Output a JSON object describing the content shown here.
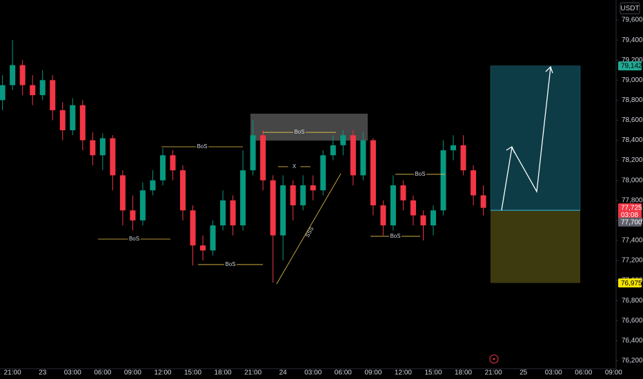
{
  "chart_data": {
    "type": "candlestick",
    "currency": "USDT",
    "up_color": "#089981",
    "down_color": "#f23645",
    "grid": false,
    "x": [
      -1,
      0,
      1,
      2,
      3,
      4,
      5,
      6,
      7,
      8,
      9,
      10,
      11,
      12,
      13,
      14,
      15,
      16,
      17,
      18,
      19,
      20,
      21,
      22,
      23,
      24,
      25,
      26,
      27,
      28,
      29,
      30,
      31,
      32,
      33,
      34,
      35,
      36,
      37,
      38,
      39,
      40,
      41,
      42,
      43,
      44,
      45,
      46,
      47
    ],
    "open": [
      78800,
      78950,
      79150,
      78950,
      78850,
      79000,
      78700,
      78500,
      78750,
      78400,
      78250,
      78420,
      78050,
      77700,
      77600,
      77900,
      78000,
      78250,
      78100,
      77700,
      77350,
      77300,
      77550,
      77800,
      77550,
      78100,
      78450,
      78000,
      77450,
      77950,
      77750,
      77950,
      77900,
      78250,
      78350,
      78450,
      78050,
      78400,
      77750,
      77550,
      77950,
      77800,
      77650,
      77550,
      77700,
      78300,
      78350,
      78100,
      77850
    ],
    "high": [
      79050,
      79400,
      79200,
      79050,
      79100,
      79050,
      78780,
      78820,
      78800,
      78480,
      78470,
      78450,
      78100,
      77850,
      77980,
      78100,
      78320,
      78300,
      78150,
      77750,
      77450,
      77600,
      77900,
      77850,
      78300,
      78600,
      78500,
      78050,
      78050,
      78000,
      78050,
      78050,
      78300,
      78450,
      78500,
      78500,
      78480,
      78420,
      77800,
      78050,
      78000,
      77850,
      77700,
      77750,
      78400,
      78450,
      78450,
      78150,
      77950
    ],
    "low": [
      78700,
      78900,
      78850,
      78750,
      78800,
      78600,
      78400,
      78450,
      78300,
      78150,
      78100,
      77900,
      77550,
      77500,
      77550,
      77850,
      77950,
      78000,
      77600,
      77150,
      77200,
      77250,
      77500,
      77450,
      77500,
      78050,
      77900,
      76980,
      77200,
      77600,
      77700,
      77800,
      77850,
      78200,
      78250,
      77950,
      78000,
      77650,
      77450,
      77500,
      77700,
      77550,
      77400,
      77450,
      77650,
      78200,
      78050,
      77750,
      77650
    ],
    "close": [
      78950,
      79150,
      78950,
      78850,
      79000,
      78700,
      78500,
      78750,
      78400,
      78250,
      78420,
      78050,
      77700,
      77600,
      77900,
      78000,
      78250,
      78100,
      77700,
      77350,
      77300,
      77550,
      77800,
      77550,
      78100,
      78450,
      78000,
      77450,
      77950,
      77750,
      77950,
      77900,
      78250,
      78350,
      78450,
      78050,
      78400,
      77750,
      77550,
      77950,
      77800,
      77650,
      77550,
      77700,
      78300,
      78350,
      78100,
      77850,
      77725.6
    ],
    "xlim": [
      -1.25,
      60.25
    ],
    "xticks": [
      {
        "value": 0,
        "label": "21:00"
      },
      {
        "value": 3,
        "label": "23"
      },
      {
        "value": 6,
        "label": "03:00"
      },
      {
        "value": 9,
        "label": "06:00"
      },
      {
        "value": 12,
        "label": "09:00"
      },
      {
        "value": 15,
        "label": "12:00"
      },
      {
        "value": 18,
        "label": "15:00"
      },
      {
        "value": 21,
        "label": "18:00"
      },
      {
        "value": 24,
        "label": "21:00"
      },
      {
        "value": 27,
        "label": "24"
      },
      {
        "value": 30,
        "label": "03:00"
      },
      {
        "value": 33,
        "label": "06:00"
      },
      {
        "value": 36,
        "label": "09:00"
      },
      {
        "value": 39,
        "label": "12:00"
      },
      {
        "value": 42,
        "label": "15:00"
      },
      {
        "value": 45,
        "label": "18:00"
      },
      {
        "value": 48,
        "label": "21:00"
      },
      {
        "value": 51,
        "label": "25"
      },
      {
        "value": 54,
        "label": "03:00"
      },
      {
        "value": 57,
        "label": "06:00"
      },
      {
        "value": 60,
        "label": "09:00"
      }
    ],
    "ylim": [
      76120,
      79800
    ],
    "yticks": [
      {
        "value": 76200,
        "label": "76,200.0"
      },
      {
        "value": 76400,
        "label": "76,400.0"
      },
      {
        "value": 76600,
        "label": "76,600.0"
      },
      {
        "value": 76800,
        "label": "76,800.0"
      },
      {
        "value": 77000,
        "label": "77,000.0"
      },
      {
        "value": 77200,
        "label": "77,200.0"
      },
      {
        "value": 77400,
        "label": "77,400.0"
      },
      {
        "value": 77600,
        "label": "77,600.0"
      },
      {
        "value": 77800,
        "label": "77,800.0"
      },
      {
        "value": 78000,
        "label": "78,000.0"
      },
      {
        "value": 78200,
        "label": "78,200.0"
      },
      {
        "value": 78400,
        "label": "78,400.0"
      },
      {
        "value": 78600,
        "label": "78,600.0"
      },
      {
        "value": 78800,
        "label": "78,800.0"
      },
      {
        "value": 79000,
        "label": "79,000.0"
      },
      {
        "value": 79200,
        "label": "79,200.0"
      },
      {
        "value": 79400,
        "label": "79,400.0"
      },
      {
        "value": 79600,
        "label": "79,600.0"
      }
    ],
    "last_price": {
      "value": 77725.6,
      "label": "77,725.6"
    },
    "countdown": "03:08",
    "position": {
      "target": {
        "value": 79142.6,
        "label": "79,142.6"
      },
      "entry": {
        "value": 77700.1,
        "label": "77,700.1"
      },
      "stop": {
        "value": 76975.5,
        "label": "76,975.5"
      }
    },
    "annotations": [
      {
        "text": "BoS",
        "value": 78335
      },
      {
        "text": "BoS",
        "value": 77413
      },
      {
        "text": "BoS",
        "value": 77159
      },
      {
        "text": "BoS",
        "value": 78479
      },
      {
        "text": "BoS",
        "value": 78060
      },
      {
        "text": "BoS",
        "value": 77441
      },
      {
        "text": "X",
        "value": 78136
      },
      {
        "text": "SSS"
      }
    ]
  }
}
